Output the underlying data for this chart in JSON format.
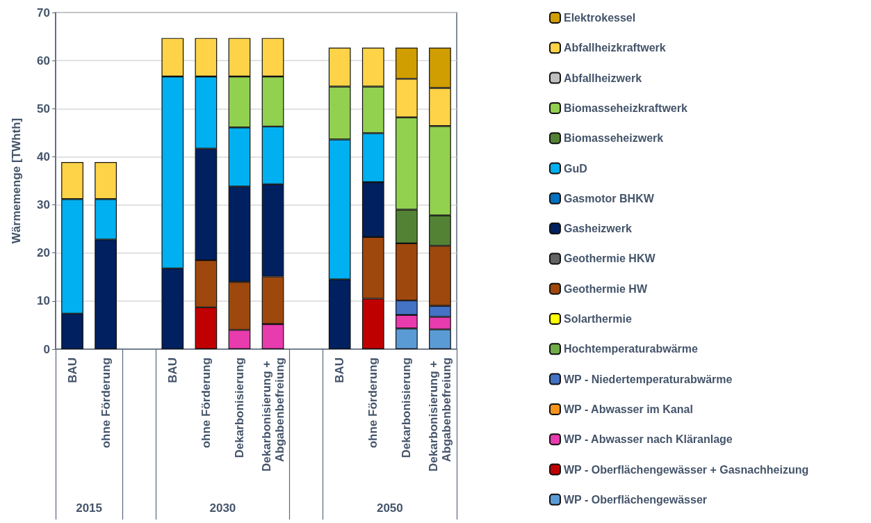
{
  "chart_data": {
    "type": "bar",
    "stacked": true,
    "ylabel": "Wärmemenge [TWhth]",
    "categories": [
      "BAU",
      "ohne Förderung",
      null,
      "BAU",
      "ohne Förderung",
      "Dekarbonisierung",
      "Dekarbonisierung + Abgabenbefreiung",
      null,
      "BAU",
      "ohne Förderung",
      "Dekarbonisierung",
      "Dekarbonisierung + Abgabenbefreiung"
    ],
    "annotations": [
      "2015",
      "2030",
      "2050"
    ],
    "ylim": [
      0,
      70
    ],
    "yticks": [
      0,
      10,
      20,
      30,
      40,
      50,
      60,
      70
    ],
    "grid": "y",
    "legend": "right",
    "series": [
      {
        "name": "WP - Oberflächengewässer",
        "color": "#5b9bd5",
        "values": [
          null,
          null,
          null,
          null,
          null,
          null,
          null,
          null,
          null,
          null,
          4.3,
          4.1
        ]
      },
      {
        "name": "WP - Oberflächengewässer + Gasnachheizung",
        "color": "#c00000",
        "values": [
          null,
          null,
          null,
          null,
          8.7,
          null,
          null,
          null,
          null,
          10.5,
          null,
          null
        ]
      },
      {
        "name": "WP - Abwasser nach Kläranlage",
        "color": "#e83bad",
        "values": [
          null,
          null,
          null,
          null,
          null,
          4.0,
          5.2,
          null,
          null,
          null,
          2.8,
          2.6
        ]
      },
      {
        "name": "WP - Abwasser im Kanal",
        "color": "#f7941d",
        "values": [
          null,
          null,
          null,
          null,
          null,
          null,
          null,
          null,
          null,
          null,
          null,
          null
        ]
      },
      {
        "name": "WP - Niedertemperaturabwärme",
        "color": "#4472c4",
        "values": [
          null,
          null,
          null,
          null,
          null,
          null,
          null,
          null,
          null,
          null,
          3.0,
          2.3
        ]
      },
      {
        "name": "Hochtemperaturabwärme",
        "color": "#70ad47",
        "values": [
          null,
          null,
          null,
          null,
          null,
          null,
          null,
          null,
          null,
          null,
          null,
          null
        ]
      },
      {
        "name": "Solarthermie",
        "color": "#ffff00",
        "values": [
          null,
          null,
          null,
          null,
          null,
          null,
          null,
          null,
          null,
          null,
          null,
          null
        ]
      },
      {
        "name": "Geothermie HW",
        "color": "#9e480e",
        "values": [
          null,
          null,
          null,
          null,
          9.8,
          10.0,
          9.9,
          null,
          null,
          12.8,
          11.9,
          12.5
        ]
      },
      {
        "name": "Geothermie HKW",
        "color": "#636363",
        "values": [
          null,
          null,
          null,
          null,
          null,
          null,
          null,
          null,
          null,
          null,
          null,
          null
        ]
      },
      {
        "name": "Gasheizwerk",
        "color": "#002060",
        "values": [
          7.4,
          22.8,
          null,
          16.8,
          23.2,
          19.8,
          19.2,
          null,
          14.5,
          11.4,
          null,
          null
        ]
      },
      {
        "name": "Gasmotor BHKW",
        "color": "#0070c0",
        "values": [
          null,
          null,
          null,
          null,
          null,
          null,
          null,
          null,
          null,
          null,
          null,
          null
        ]
      },
      {
        "name": "GuD",
        "color": "#00b0f0",
        "values": [
          23.8,
          8.4,
          null,
          39.9,
          15.0,
          12.3,
          12.0,
          null,
          29.1,
          10.2,
          null,
          null
        ]
      },
      {
        "name": "Biomasseheizwerk",
        "color": "#548235",
        "values": [
          null,
          null,
          null,
          null,
          null,
          null,
          null,
          null,
          null,
          null,
          7.0,
          6.3
        ]
      },
      {
        "name": "Biomasseheizkraftwerk",
        "color": "#92d050",
        "values": [
          null,
          null,
          null,
          null,
          null,
          10.6,
          10.4,
          null,
          11.0,
          9.7,
          19.2,
          18.6
        ]
      },
      {
        "name": "Abfallheizwerk",
        "color": "#bfbfbf",
        "values": [
          null,
          null,
          null,
          null,
          null,
          null,
          null,
          null,
          null,
          null,
          null,
          null
        ]
      },
      {
        "name": "Abfallheizkraftwerk",
        "color": "#ffd347",
        "values": [
          7.7,
          7.7,
          null,
          8.0,
          8.0,
          8.0,
          8.0,
          null,
          8.1,
          8.1,
          8.0,
          7.9
        ]
      },
      {
        "name": "Elektrokessel",
        "color": "#d09e00",
        "values": [
          null,
          null,
          null,
          null,
          null,
          null,
          null,
          null,
          null,
          null,
          6.5,
          8.4
        ]
      }
    ]
  }
}
